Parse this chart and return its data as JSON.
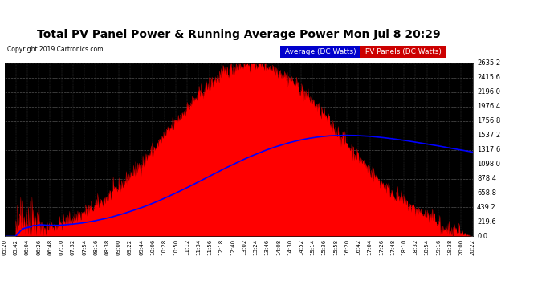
{
  "title": "Total PV Panel Power & Running Average Power Mon Jul 8 20:29",
  "copyright": "Copyright 2019 Cartronics.com",
  "legend_avg": "Average (DC Watts)",
  "legend_pv": "PV Panels (DC Watts)",
  "pv_color": "#ff0000",
  "avg_color": "#0000ff",
  "avg_legend_bg": "#0000cc",
  "pv_legend_bg": "#cc0000",
  "plot_bg_color": "#000000",
  "grid_color": "#666666",
  "ymin": 0.0,
  "ymax": 2635.2,
  "yticks": [
    0.0,
    219.6,
    439.2,
    658.8,
    878.4,
    1098.0,
    1317.6,
    1537.2,
    1756.8,
    1976.4,
    2196.0,
    2415.6,
    2635.2
  ],
  "xtick_labels": [
    "05:20",
    "05:42",
    "06:04",
    "06:26",
    "06:48",
    "07:10",
    "07:32",
    "07:54",
    "08:16",
    "08:38",
    "09:00",
    "09:22",
    "09:44",
    "10:06",
    "10:28",
    "10:50",
    "11:12",
    "11:34",
    "11:56",
    "12:18",
    "12:40",
    "13:02",
    "13:24",
    "13:46",
    "14:08",
    "14:30",
    "14:52",
    "15:14",
    "15:36",
    "15:58",
    "16:20",
    "16:42",
    "17:04",
    "17:26",
    "17:48",
    "18:10",
    "18:32",
    "18:54",
    "19:16",
    "19:38",
    "20:00",
    "20:22"
  ],
  "n_points": 900,
  "peak_value": 2635.2
}
